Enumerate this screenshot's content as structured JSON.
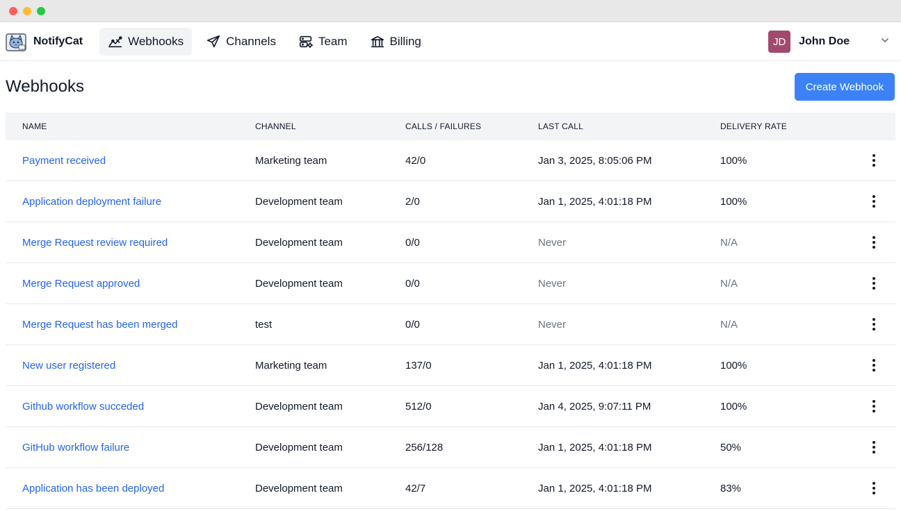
{
  "app": {
    "name": "NotifyCat"
  },
  "nav": {
    "items": [
      {
        "label": "Webhooks",
        "icon": "webhook-icon",
        "active": true
      },
      {
        "label": "Channels",
        "icon": "send-icon",
        "active": false
      },
      {
        "label": "Team",
        "icon": "team-icon",
        "active": false
      },
      {
        "label": "Billing",
        "icon": "bank-icon",
        "active": false
      }
    ]
  },
  "user": {
    "initials": "JD",
    "name": "John Doe",
    "avatar_color": "#a14a6f"
  },
  "page": {
    "title": "Webhooks",
    "create_button": "Create Webhook"
  },
  "table": {
    "headers": [
      "NAME",
      "CHANNEL",
      "CALLS / FAILURES",
      "LAST CALL",
      "DELIVERY RATE"
    ],
    "rows": [
      {
        "name": "Payment received",
        "channel": "Marketing team",
        "calls": "42/0",
        "last_call": "Jan 3, 2025, 8:05:06 PM",
        "rate": "100%"
      },
      {
        "name": "Application deployment failure",
        "channel": "Development team",
        "calls": "2/0",
        "last_call": "Jan 1, 2025, 4:01:18 PM",
        "rate": "100%"
      },
      {
        "name": "Merge Request review required",
        "channel": "Development team",
        "calls": "0/0",
        "last_call": "Never",
        "rate": "N/A"
      },
      {
        "name": "Merge Request approved",
        "channel": "Development team",
        "calls": "0/0",
        "last_call": "Never",
        "rate": "N/A"
      },
      {
        "name": "Merge Request has been merged",
        "channel": "test",
        "calls": "0/0",
        "last_call": "Never",
        "rate": "N/A"
      },
      {
        "name": "New user registered",
        "channel": "Marketing team",
        "calls": "137/0",
        "last_call": "Jan 1, 2025, 4:01:18 PM",
        "rate": "100%"
      },
      {
        "name": "Github workflow succeded",
        "channel": "Development team",
        "calls": "512/0",
        "last_call": "Jan 4, 2025, 9:07:11 PM",
        "rate": "100%"
      },
      {
        "name": "GitHub workflow failure",
        "channel": "Development team",
        "calls": "256/128",
        "last_call": "Jan 1, 2025, 4:01:18 PM",
        "rate": "50%"
      },
      {
        "name": "Application has been deployed",
        "channel": "Development team",
        "calls": "42/7",
        "last_call": "Jan 1, 2025, 4:01:18 PM",
        "rate": "83%"
      }
    ]
  },
  "colors": {
    "accent": "#3b82f6",
    "link": "#2563eb",
    "muted": "#6b7280"
  }
}
